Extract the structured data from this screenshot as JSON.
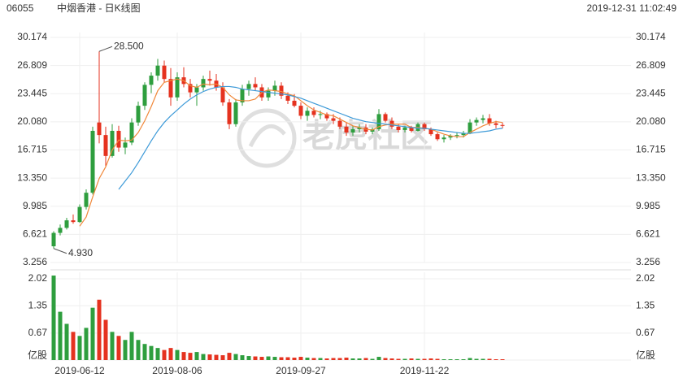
{
  "header": {
    "code": "06055",
    "title": "中烟香港 - 日K线图",
    "time": "2019-12-31 11:02:49"
  },
  "watermark": "老虎社区",
  "chart_data": {
    "type": "candlestick",
    "categories": [
      null,
      null,
      null,
      null,
      "2019-06-12",
      null,
      null,
      null,
      null,
      null,
      null,
      null,
      null,
      null,
      null,
      null,
      null,
      null,
      null,
      "2019-08-06",
      null,
      null,
      null,
      null,
      null,
      null,
      null,
      null,
      null,
      null,
      null,
      null,
      null,
      null,
      null,
      null,
      null,
      null,
      "2019-09-27",
      null,
      null,
      null,
      null,
      null,
      null,
      null,
      null,
      null,
      null,
      null,
      null,
      null,
      null,
      null,
      null,
      null,
      null,
      "2019-11-22",
      null,
      null,
      null,
      null,
      null,
      null,
      null,
      null,
      null,
      null,
      null,
      null
    ],
    "open": [
      5.2,
      6.8,
      7.4,
      8.3,
      8.1,
      9.9,
      11.6,
      20.0,
      18.5,
      16.0,
      19.0,
      17.0,
      17.6,
      20.0,
      22.0,
      24.5,
      25.6,
      26.8,
      25.2,
      23.0,
      25.4,
      24.6,
      23.6,
      24.2,
      25.2,
      25.0,
      24.2,
      22.4,
      19.8,
      22.4,
      24.0,
      24.6,
      24.2,
      23.0,
      23.8,
      24.4,
      23.2,
      22.6,
      22.0,
      20.8,
      21.4,
      20.9,
      21.0,
      20.5,
      20.2,
      19.5,
      18.8,
      19.2,
      19.4,
      18.9,
      19.2,
      21.0,
      20.2,
      19.5,
      19.1,
      19.4,
      19.0,
      19.8,
      19.2,
      18.6,
      18.0,
      18.2,
      18.4,
      18.5,
      18.7,
      20.0,
      20.3,
      20.5,
      19.9,
      19.7
    ],
    "high": [
      7.0,
      7.8,
      8.6,
      9.0,
      10.2,
      12.0,
      19.5,
      28.5,
      19.5,
      19.8,
      19.6,
      18.2,
      20.5,
      22.5,
      24.8,
      26.0,
      27.6,
      27.4,
      26.5,
      26.0,
      26.6,
      25.2,
      24.6,
      25.6,
      26.2,
      25.8,
      24.8,
      22.8,
      22.8,
      24.5,
      25.0,
      25.4,
      24.6,
      24.2,
      25.0,
      24.8,
      23.6,
      23.4,
      22.4,
      21.8,
      21.8,
      21.4,
      21.2,
      21.0,
      20.6,
      20.0,
      19.6,
      19.8,
      19.8,
      19.4,
      21.6,
      21.2,
      20.6,
      19.8,
      19.6,
      19.6,
      20.0,
      20.0,
      19.4,
      18.8,
      18.5,
      18.6,
      18.8,
      19.0,
      20.4,
      20.6,
      20.9,
      21.0,
      20.2,
      20.0
    ],
    "low": [
      4.93,
      6.5,
      7.2,
      7.9,
      8.0,
      9.6,
      11.4,
      17.5,
      14.8,
      15.8,
      16.5,
      16.2,
      17.3,
      19.6,
      21.5,
      23.5,
      25.0,
      24.8,
      22.0,
      22.6,
      24.2,
      23.0,
      22.0,
      23.8,
      24.4,
      23.8,
      22.0,
      19.2,
      19.5,
      22.0,
      23.2,
      23.8,
      22.6,
      22.6,
      23.2,
      22.8,
      22.2,
      21.8,
      20.4,
      20.2,
      20.6,
      20.4,
      20.2,
      19.8,
      19.2,
      18.4,
      18.4,
      18.8,
      18.6,
      18.6,
      19.0,
      20.0,
      19.2,
      18.8,
      18.8,
      18.8,
      18.9,
      19.0,
      18.4,
      17.8,
      17.6,
      17.9,
      18.1,
      18.2,
      18.6,
      19.6,
      19.9,
      19.6,
      19.3,
      19.3
    ],
    "close": [
      6.8,
      7.4,
      8.3,
      8.1,
      9.9,
      11.6,
      19.0,
      18.5,
      16.0,
      19.0,
      17.0,
      17.6,
      20.0,
      22.0,
      24.5,
      25.6,
      26.8,
      25.2,
      23.0,
      25.4,
      24.6,
      23.6,
      24.2,
      25.2,
      25.0,
      24.2,
      22.4,
      19.8,
      22.4,
      24.0,
      24.6,
      24.2,
      23.0,
      23.8,
      24.4,
      23.2,
      22.6,
      22.0,
      20.8,
      21.4,
      20.9,
      21.0,
      20.5,
      20.2,
      19.5,
      18.8,
      19.2,
      19.4,
      18.9,
      19.2,
      21.0,
      20.2,
      19.5,
      19.1,
      19.4,
      19.0,
      19.8,
      19.2,
      18.6,
      18.0,
      18.2,
      18.4,
      18.5,
      18.7,
      20.0,
      20.3,
      20.5,
      19.9,
      19.7,
      19.6
    ],
    "up_color": "#2e9e3e",
    "down_color": "#e5321f",
    "ylim": [
      3.256,
      30.174
    ],
    "yticks": [
      3.256,
      6.621,
      9.985,
      {
        "value": 13.35,
        "label": "13.350"
      },
      16.715,
      {
        "value": 20.08,
        "label": "20.080"
      },
      23.445,
      26.809,
      30.174
    ],
    "grid": true,
    "lines": [
      {
        "color": "#f0883a",
        "values": [
          null,
          null,
          null,
          null,
          7.6,
          8.7,
          11.1,
          13.3,
          14.7,
          16.7,
          17.9,
          17.8,
          17.9,
          18.8,
          20.2,
          21.9,
          23.8,
          24.8,
          25.0,
          25.2,
          25.0,
          24.4,
          24.2,
          24.6,
          24.5,
          24.6,
          24.2,
          23.3,
          22.7,
          22.6,
          22.6,
          22.8,
          23.6,
          23.9,
          23.8,
          23.7,
          23.4,
          23.2,
          22.6,
          22.0,
          21.5,
          21.2,
          20.9,
          20.8,
          20.4,
          20.0,
          19.6,
          19.4,
          19.2,
          19.1,
          19.5,
          19.7,
          19.8,
          19.8,
          19.8,
          19.4,
          19.4,
          19.3,
          19.2,
          18.9,
          18.6,
          18.4,
          18.3,
          18.3,
          18.8,
          19.2,
          19.6,
          19.9,
          20.1,
          20.0
        ]
      },
      {
        "color": "#3d9ad8",
        "values": [
          null,
          null,
          null,
          null,
          null,
          null,
          null,
          null,
          null,
          null,
          12.0,
          13.0,
          14.0,
          15.2,
          16.5,
          17.8,
          19.0,
          20.0,
          20.8,
          21.5,
          22.2,
          22.8,
          23.3,
          23.7,
          24.0,
          24.2,
          24.3,
          24.3,
          24.2,
          24.0,
          23.9,
          23.8,
          23.7,
          23.6,
          23.5,
          23.4,
          23.3,
          23.1,
          22.9,
          22.6,
          22.3,
          22.0,
          21.7,
          21.4,
          21.1,
          20.8,
          20.5,
          20.3,
          20.1,
          20.0,
          19.9,
          19.8,
          19.7,
          19.6,
          19.5,
          19.4,
          19.3,
          19.3,
          19.2,
          19.1,
          19.0,
          18.9,
          18.8,
          18.7,
          18.7,
          18.8,
          18.9,
          19.0,
          19.2,
          19.3
        ]
      }
    ],
    "annotations": [
      {
        "text": "28.500"
      },
      {
        "text": "4.930"
      }
    ],
    "volume": {
      "values": [
        2.1,
        1.2,
        0.9,
        0.7,
        0.6,
        0.8,
        1.3,
        1.5,
        1.0,
        0.7,
        0.6,
        0.5,
        0.7,
        0.5,
        0.4,
        0.35,
        0.3,
        0.25,
        0.3,
        0.25,
        0.2,
        0.18,
        0.2,
        0.15,
        0.14,
        0.13,
        0.12,
        0.18,
        0.15,
        0.12,
        0.1,
        0.09,
        0.08,
        0.09,
        0.08,
        0.07,
        0.07,
        0.06,
        0.08,
        0.06,
        0.05,
        0.05,
        0.04,
        0.05,
        0.05,
        0.06,
        0.04,
        0.04,
        0.05,
        0.03,
        0.08,
        0.05,
        0.04,
        0.03,
        0.03,
        0.04,
        0.03,
        0.03,
        0.04,
        0.03,
        0.02,
        0.02,
        0.02,
        0.02,
        0.05,
        0.03,
        0.03,
        0.03,
        0.02,
        0.02
      ],
      "ylim": [
        0,
        2.02
      ],
      "yticks": [
        {
          "value": 0,
          "label": "亿股"
        },
        0.67,
        1.35,
        2.02
      ]
    }
  }
}
